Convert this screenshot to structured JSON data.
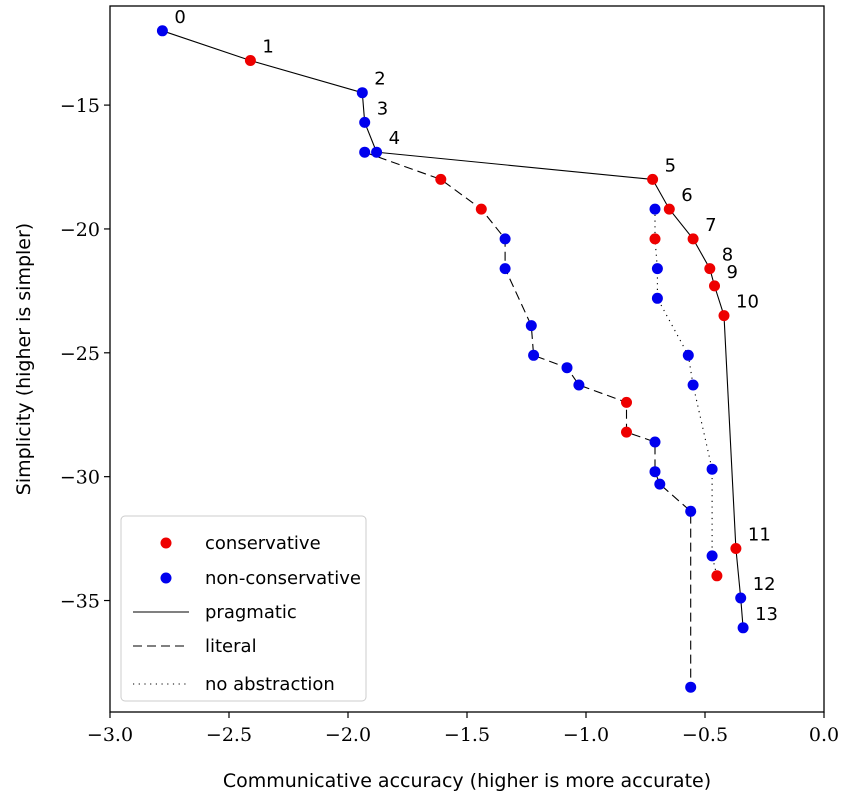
{
  "chart_data": {
    "type": "scatter",
    "xlabel": "Communicative accuracy (higher is more accurate)",
    "ylabel": "Simplicity (higher is simpler)",
    "xlim": [
      -3.0,
      0.0
    ],
    "ylim": [
      -39.5,
      -11.0
    ],
    "xticks": [
      -3.0,
      -2.5,
      -2.0,
      -1.5,
      -1.0,
      -0.5,
      0.0
    ],
    "xtick_labels": [
      "−3.0",
      "−2.5",
      "−2.0",
      "−1.5",
      "−1.0",
      "−0.5",
      "0.0"
    ],
    "yticks": [
      -15,
      -20,
      -25,
      -30,
      -35
    ],
    "ytick_labels": [
      "−15",
      "−20",
      "−25",
      "−30",
      "−35"
    ],
    "grid": false,
    "legend_position": "lower-left",
    "colors": {
      "conservative": "#ee0000",
      "non_conservative": "#0000ee",
      "line": "#000000"
    },
    "legend": [
      {
        "kind": "marker",
        "color": "conservative",
        "label": "conservative"
      },
      {
        "kind": "marker",
        "color": "non_conservative",
        "label": "non-conservative"
      },
      {
        "kind": "line",
        "style": "solid",
        "label": "pragmatic"
      },
      {
        "kind": "line",
        "style": "dashed",
        "label": "literal"
      },
      {
        "kind": "line",
        "style": "dotted",
        "label": "no abstraction"
      }
    ],
    "series": [
      {
        "name": "pragmatic",
        "style": "solid",
        "points": [
          {
            "x": -2.78,
            "y": -12.0,
            "cls": "non_conservative",
            "label": "0"
          },
          {
            "x": -2.41,
            "y": -13.2,
            "cls": "conservative",
            "label": "1"
          },
          {
            "x": -1.94,
            "y": -14.5,
            "cls": "non_conservative",
            "label": "2"
          },
          {
            "x": -1.93,
            "y": -15.7,
            "cls": "non_conservative",
            "label": "3"
          },
          {
            "x": -1.88,
            "y": -16.9,
            "cls": "non_conservative",
            "label": "4"
          },
          {
            "x": -0.72,
            "y": -18.0,
            "cls": "conservative",
            "label": "5"
          },
          {
            "x": -0.65,
            "y": -19.2,
            "cls": "conservative",
            "label": "6"
          },
          {
            "x": -0.55,
            "y": -20.4,
            "cls": "conservative",
            "label": "7"
          },
          {
            "x": -0.48,
            "y": -21.6,
            "cls": "conservative",
            "label": "8"
          },
          {
            "x": -0.46,
            "y": -22.3,
            "cls": "conservative",
            "label": "9"
          },
          {
            "x": -0.42,
            "y": -23.5,
            "cls": "conservative",
            "label": "10"
          },
          {
            "x": -0.37,
            "y": -32.9,
            "cls": "conservative",
            "label": "11"
          },
          {
            "x": -0.35,
            "y": -34.9,
            "cls": "non_conservative",
            "label": "12"
          },
          {
            "x": -0.34,
            "y": -36.1,
            "cls": "non_conservative",
            "label": "13"
          }
        ]
      },
      {
        "name": "literal",
        "style": "dashed",
        "points": [
          {
            "x": -1.93,
            "y": -16.9,
            "cls": "non_conservative"
          },
          {
            "x": -1.61,
            "y": -18.0,
            "cls": "conservative"
          },
          {
            "x": -1.44,
            "y": -19.2,
            "cls": "conservative"
          },
          {
            "x": -1.34,
            "y": -20.4,
            "cls": "non_conservative"
          },
          {
            "x": -1.34,
            "y": -21.6,
            "cls": "non_conservative"
          },
          {
            "x": -1.23,
            "y": -23.9,
            "cls": "non_conservative"
          },
          {
            "x": -1.22,
            "y": -25.1,
            "cls": "non_conservative"
          },
          {
            "x": -1.08,
            "y": -25.6,
            "cls": "non_conservative"
          },
          {
            "x": -1.03,
            "y": -26.3,
            "cls": "non_conservative"
          },
          {
            "x": -0.83,
            "y": -27.0,
            "cls": "conservative"
          },
          {
            "x": -0.83,
            "y": -28.2,
            "cls": "conservative"
          },
          {
            "x": -0.71,
            "y": -28.6,
            "cls": "non_conservative"
          },
          {
            "x": -0.71,
            "y": -29.8,
            "cls": "non_conservative"
          },
          {
            "x": -0.69,
            "y": -30.3,
            "cls": "non_conservative"
          },
          {
            "x": -0.56,
            "y": -31.4,
            "cls": "non_conservative"
          },
          {
            "x": -0.56,
            "y": -38.5,
            "cls": "non_conservative"
          }
        ]
      },
      {
        "name": "no abstraction",
        "style": "dotted",
        "points": [
          {
            "x": -0.71,
            "y": -19.2,
            "cls": "non_conservative"
          },
          {
            "x": -0.71,
            "y": -20.4,
            "cls": "conservative"
          },
          {
            "x": -0.7,
            "y": -21.6,
            "cls": "non_conservative"
          },
          {
            "x": -0.7,
            "y": -22.8,
            "cls": "non_conservative"
          },
          {
            "x": -0.57,
            "y": -25.1,
            "cls": "non_conservative"
          },
          {
            "x": -0.55,
            "y": -26.3,
            "cls": "non_conservative"
          },
          {
            "x": -0.47,
            "y": -29.7,
            "cls": "non_conservative"
          },
          {
            "x": -0.47,
            "y": -33.2,
            "cls": "non_conservative"
          },
          {
            "x": -0.45,
            "y": -34.0,
            "cls": "conservative"
          }
        ]
      }
    ]
  }
}
